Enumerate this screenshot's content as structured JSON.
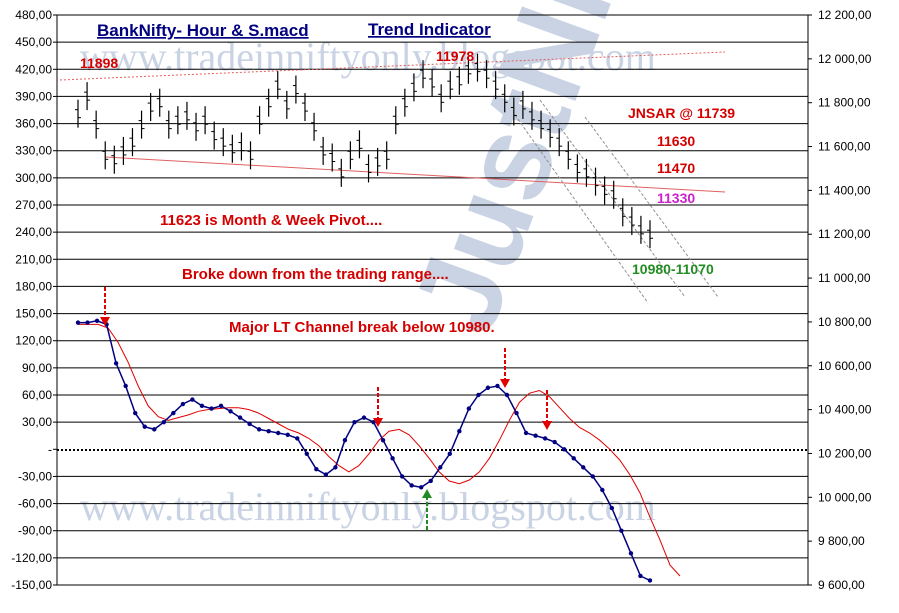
{
  "chart_data": {
    "type": "line",
    "title": "BankNifty- Hour & S.macd",
    "subtitle": "Trend Indicator",
    "watermark_url": "www.tradeinniftyonly.blogspot.com",
    "watermark_brand": "JustNifty",
    "left_axis": {
      "ticks": [
        "480,00",
        "450,00",
        "420,00",
        "390,00",
        "360,00",
        "330,00",
        "300,00",
        "270,00",
        "240,00",
        "210,00",
        "180,00",
        "150,00",
        "120,00",
        "90,00",
        "60,00",
        "30,00",
        "-",
        "-30,00",
        "-60,00",
        "-90,00",
        "-120,00",
        "-150,00"
      ],
      "ylim": [
        -150,
        480
      ]
    },
    "right_axis": {
      "ticks": [
        "12 200,00",
        "12 000,00",
        "11 800,00",
        "11 600,00",
        "11 400,00",
        "11 200,00",
        "11 000,00",
        "10 800,00",
        "10 600,00",
        "10 400,00",
        "10 200,00",
        "10 000,00",
        "9 800,00",
        "9 600,00"
      ],
      "ylim": [
        9600,
        12200
      ]
    },
    "price_series": [
      11750,
      11830,
      11700,
      11560,
      11540,
      11580,
      11620,
      11700,
      11780,
      11800,
      11700,
      11720,
      11740,
      11690,
      11720,
      11650,
      11620,
      11590,
      11600,
      11560,
      11720,
      11800,
      11880,
      11790,
      11860,
      11780,
      11690,
      11580,
      11550,
      11480,
      11560,
      11610,
      11500,
      11530,
      11560,
      11720,
      11800,
      11870,
      11930,
      11890,
      11820,
      11880,
      11900,
      11950,
      11960,
      11930,
      11880,
      11820,
      11760,
      11790,
      11740,
      11700,
      11660,
      11620,
      11560,
      11500,
      11480,
      11440,
      11400,
      11380,
      11300,
      11260,
      11220,
      11200
    ],
    "macd_series": [
      140,
      140,
      142,
      138,
      95,
      70,
      40,
      25,
      22,
      30,
      40,
      50,
      55,
      48,
      45,
      48,
      42,
      35,
      28,
      22,
      20,
      18,
      16,
      12,
      -5,
      -22,
      -28,
      -20,
      10,
      30,
      35,
      30,
      10,
      -10,
      -30,
      -40,
      -42,
      -35,
      -20,
      -5,
      20,
      45,
      60,
      68,
      70,
      60,
      40,
      18,
      15,
      12,
      8,
      0,
      -10,
      -20,
      -30,
      -45,
      -65,
      -90,
      -115,
      -140,
      -145
    ],
    "signal_series": [
      138,
      138,
      138,
      134,
      118,
      96,
      70,
      48,
      36,
      32,
      35,
      38,
      42,
      44,
      45,
      46,
      46,
      44,
      40,
      34,
      28,
      22,
      18,
      12,
      4,
      -8,
      -18,
      -25,
      -18,
      -5,
      10,
      20,
      22,
      16,
      4,
      -10,
      -25,
      -35,
      -38,
      -34,
      -25,
      -10,
      10,
      32,
      52,
      62,
      65,
      58,
      46,
      34,
      24,
      18,
      10,
      0,
      -12,
      -28,
      -48,
      -75,
      -100,
      -128,
      -140
    ],
    "annotations": [
      {
        "text": "11898",
        "color": "#d40000"
      },
      {
        "text": "11978",
        "color": "#d40000"
      },
      {
        "text": "JNSAR @ 11739",
        "color": "#d40000"
      },
      {
        "text": "11630",
        "color": "#d40000"
      },
      {
        "text": "11470",
        "color": "#d40000"
      },
      {
        "text": "11330",
        "color": "#cc22cc"
      },
      {
        "text": "10980-11070",
        "color": "#228b22"
      },
      {
        "text": "11623 is Month & Week Pivot....",
        "color": "#d40000"
      },
      {
        "text": "Broke down from the trading range....",
        "color": "#d40000"
      },
      {
        "text": "Major LT Channel break below 10980.",
        "color": "#d40000"
      }
    ],
    "colors": {
      "title": "#000080",
      "price_bars": "#000000",
      "macd": "#000080",
      "signal": "#e00000",
      "trendline": "#e06060",
      "channel": "#909090",
      "grid": "#000000"
    },
    "grid": true
  }
}
